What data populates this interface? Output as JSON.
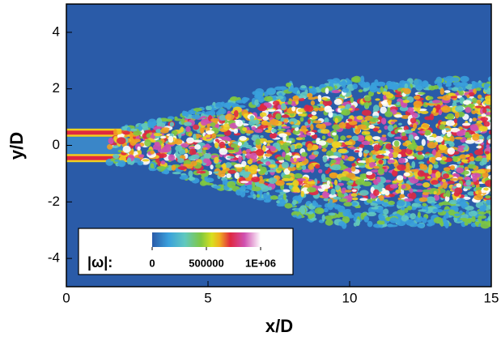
{
  "chart_data": {
    "type": "contour",
    "xlabel": "x/D",
    "ylabel": "y/D",
    "xlim": [
      0,
      15
    ],
    "xticks": [
      0,
      5,
      10,
      15
    ],
    "ylim": [
      -5,
      5
    ],
    "yticks": [
      -4,
      -2,
      0,
      2,
      4
    ],
    "colorbar": {
      "label": "|ω|:",
      "lim": [
        0,
        1000000
      ],
      "ticks": [
        0,
        500000,
        {
          "value": 1000000,
          "label": "1E+06"
        }
      ]
    }
  }
}
